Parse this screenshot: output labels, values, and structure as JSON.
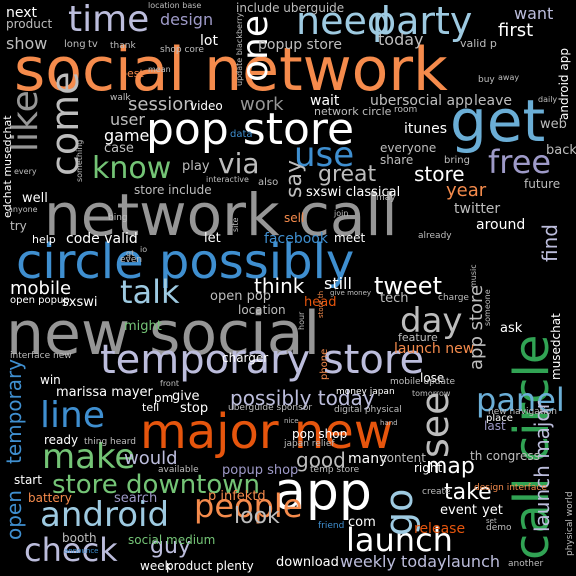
{
  "palette": {
    "background": "#000000",
    "orange": "#f58b4c",
    "dark_orange": "#e6550d",
    "blue": "#3f8fd0",
    "light_blue": "#9ecae1",
    "purple": "#9e9ac8",
    "lavender": "#bcbddc",
    "green": "#31a354",
    "light_green": "#74c476",
    "gray": "#969696",
    "light_gray": "#bdbdbd"
  },
  "words": [
    {
      "text": "social network",
      "color": "#f58b4c"
    },
    {
      "text": "network call",
      "color": "#969696"
    },
    {
      "text": "circle possibly",
      "color": "#3f8fd0"
    },
    {
      "text": "new social",
      "color": "#969696"
    },
    {
      "text": "pop store",
      "color": "#ffffff"
    },
    {
      "text": "call circle",
      "color": "#31a354"
    },
    {
      "text": "major new",
      "color": "#e6550d"
    },
    {
      "text": "temporary store",
      "color": "#bcbddc"
    },
    {
      "text": "get",
      "color": "#6baed6"
    },
    {
      "text": "app",
      "color": "#ffffff"
    },
    {
      "text": "launch",
      "color": "#ffffff"
    },
    {
      "text": "android",
      "color": "#9ecae1"
    },
    {
      "text": "check",
      "color": "#bcbddc"
    },
    {
      "text": "people",
      "color": "#f58b4c"
    },
    {
      "text": "time",
      "color": "#bcbddc"
    },
    {
      "text": "party",
      "color": "#9ecae1"
    },
    {
      "text": "need",
      "color": "#9ecae1"
    },
    {
      "text": "one",
      "color": "#ffffff"
    },
    {
      "text": "like",
      "color": "#969696"
    },
    {
      "text": "come",
      "color": "#bdbdbd"
    },
    {
      "text": "know",
      "color": "#74c476"
    },
    {
      "text": "use",
      "color": "#3f8fd0"
    },
    {
      "text": "free",
      "color": "#9e9ac8"
    },
    {
      "text": "via",
      "color": "#bdbdbd"
    },
    {
      "text": "talk",
      "color": "#9ecae1"
    },
    {
      "text": "day",
      "color": "#bdbdbd"
    },
    {
      "text": "line",
      "color": "#3f8fd0"
    },
    {
      "text": "make",
      "color": "#74c476"
    },
    {
      "text": "panel",
      "color": "#6baed6"
    },
    {
      "text": "see",
      "color": "#bdbdbd"
    },
    {
      "text": "go",
      "color": "#9ecae1"
    },
    {
      "text": "store downtown",
      "color": "#74c476"
    },
    {
      "text": "possibly today",
      "color": "#bcbddc"
    },
    {
      "text": "launch major",
      "color": "#bcbddc"
    },
    {
      "text": "tweet",
      "color": "#ffffff"
    },
    {
      "text": "think",
      "color": "#ffffff"
    },
    {
      "text": "mobile",
      "color": "#ffffff"
    },
    {
      "text": "would",
      "color": "#bcbddc"
    },
    {
      "text": "good",
      "color": "#bdbdbd"
    },
    {
      "text": "look",
      "color": "#bdbdbd"
    },
    {
      "text": "guy",
      "color": "#bcbddc"
    },
    {
      "text": "map",
      "color": "#ffffff"
    },
    {
      "text": "take",
      "color": "#ffffff"
    },
    {
      "text": "temporary",
      "color": "#3f8fd0"
    },
    {
      "text": "open",
      "color": "#3f8fd0"
    },
    {
      "text": "weekly todaylaunch",
      "color": "#bcbddc"
    },
    {
      "text": "store",
      "color": "#ffffff"
    },
    {
      "text": "year",
      "color": "#f58b4c"
    },
    {
      "text": "great",
      "color": "#bdbdbd"
    },
    {
      "text": "say",
      "color": "#bdbdbd"
    },
    {
      "text": "work",
      "color": "#969696"
    },
    {
      "text": "session",
      "color": "#bdbdbd"
    },
    {
      "text": "user",
      "color": "#bdbdbd"
    },
    {
      "text": "game",
      "color": "#ffffff"
    },
    {
      "text": "design",
      "color": "#9e9ac8"
    },
    {
      "text": "first",
      "color": "#ffffff"
    },
    {
      "text": "want",
      "color": "#bcbddc"
    },
    {
      "text": "today",
      "color": "#bdbdbd"
    },
    {
      "text": "show",
      "color": "#bdbdbd"
    },
    {
      "text": "find",
      "color": "#bcbddc"
    },
    {
      "text": "app store",
      "color": "#bdbdbd"
    },
    {
      "text": "ubersocial app",
      "color": "#bdbdbd"
    },
    {
      "text": "popup store",
      "color": "#bdbdbd"
    },
    {
      "text": "include uberguide",
      "color": "#bdbdbd"
    },
    {
      "text": "next",
      "color": "#ffffff"
    },
    {
      "text": "product",
      "color": "#bdbdbd"
    },
    {
      "text": "lot",
      "color": "#ffffff"
    },
    {
      "text": "wait",
      "color": "#ffffff"
    },
    {
      "text": "leave",
      "color": "#bdbdbd"
    },
    {
      "text": "sxswi classical",
      "color": "#ffffff"
    },
    {
      "text": "twitter",
      "color": "#bdbdbd"
    },
    {
      "text": "around",
      "color": "#ffffff"
    },
    {
      "text": "code valid",
      "color": "#ffffff"
    },
    {
      "text": "facebook",
      "color": "#3f8fd0"
    },
    {
      "text": "open pop",
      "color": "#bdbdbd"
    },
    {
      "text": "sxswi",
      "color": "#ffffff"
    },
    {
      "text": "location",
      "color": "#bdbdbd"
    },
    {
      "text": "still",
      "color": "#ffffff"
    },
    {
      "text": "tech",
      "color": "#bdbdbd"
    },
    {
      "text": "launch new",
      "color": "#f58b4c"
    },
    {
      "text": "marissa mayer",
      "color": "#ffffff"
    },
    {
      "text": "win",
      "color": "#ffffff"
    },
    {
      "text": "give",
      "color": "#ffffff"
    },
    {
      "text": "stop",
      "color": "#ffffff"
    },
    {
      "text": "pm",
      "color": "#ffffff"
    },
    {
      "text": "ready",
      "color": "#ffffff"
    },
    {
      "text": "pop shop",
      "color": "#ffffff"
    },
    {
      "text": "popup shop",
      "color": "#9e9ac8"
    },
    {
      "text": "many",
      "color": "#ffffff"
    },
    {
      "text": "content",
      "color": "#bdbdbd"
    },
    {
      "text": "right",
      "color": "#ffffff"
    },
    {
      "text": "th congress",
      "color": "#bdbdbd"
    },
    {
      "text": "search",
      "color": "#9e9ac8"
    },
    {
      "text": "p infektd",
      "color": "#f58b4c"
    },
    {
      "text": "event",
      "color": "#ffffff"
    },
    {
      "text": "yet",
      "color": "#ffffff"
    },
    {
      "text": "release",
      "color": "#e6550d"
    },
    {
      "text": "battery",
      "color": "#f58b4c"
    },
    {
      "text": "start",
      "color": "#ffffff"
    },
    {
      "text": "booth",
      "color": "#bdbdbd"
    },
    {
      "text": "social medium",
      "color": "#74c476"
    },
    {
      "text": "download",
      "color": "#ffffff"
    },
    {
      "text": "week",
      "color": "#ffffff"
    },
    {
      "text": "product plenty",
      "color": "#ffffff"
    },
    {
      "text": "com",
      "color": "#ffffff"
    },
    {
      "text": "head",
      "color": "#e6550d"
    },
    {
      "text": "charger",
      "color": "#ffffff"
    },
    {
      "text": "ask",
      "color": "#ffffff"
    },
    {
      "text": "itunes",
      "color": "#ffffff"
    },
    {
      "text": "share",
      "color": "#bdbdbd"
    },
    {
      "text": "everyone",
      "color": "#bdbdbd"
    },
    {
      "text": "play",
      "color": "#bdbdbd"
    },
    {
      "text": "case",
      "color": "#bdbdbd"
    },
    {
      "text": "video",
      "color": "#ffffff"
    },
    {
      "text": "store include",
      "color": "#bdbdbd"
    },
    {
      "text": "sell",
      "color": "#f58b4c"
    },
    {
      "text": "might",
      "color": "#74c476"
    },
    {
      "text": "let",
      "color": "#ffffff"
    },
    {
      "text": "meet",
      "color": "#ffffff"
    },
    {
      "text": "back",
      "color": "#bdbdbd"
    },
    {
      "text": "future",
      "color": "#bdbdbd"
    },
    {
      "text": "web",
      "color": "#bdbdbd"
    },
    {
      "text": "last",
      "color": "#9e9ac8"
    },
    {
      "text": "place",
      "color": "#ffffff"
    },
    {
      "text": "musedchat",
      "color": "#ffffff"
    },
    {
      "text": "android app",
      "color": "#ffffff"
    },
    {
      "text": "edchat musedchat",
      "color": "#ffffff"
    },
    {
      "text": "network circle",
      "color": "#bdbdbd"
    },
    {
      "text": "well",
      "color": "#ffffff"
    },
    {
      "text": "try",
      "color": "#bdbdbd"
    },
    {
      "text": "help",
      "color": "#ffffff"
    },
    {
      "text": "best",
      "color": "#f58b4c"
    },
    {
      "text": "long",
      "color": "#bdbdbd"
    },
    {
      "text": "tv",
      "color": "#bdbdbd"
    },
    {
      "text": "valid p",
      "color": "#bdbdbd"
    },
    {
      "text": "lose",
      "color": "#ffffff"
    },
    {
      "text": "tell",
      "color": "#ffffff"
    },
    {
      "text": "phone",
      "color": "#f58b4c"
    },
    {
      "text": "feature",
      "color": "#bdbdbd"
    },
    {
      "text": "bring",
      "color": "#bdbdbd"
    },
    {
      "text": "open popup",
      "color": "#ffffff"
    },
    {
      "text": "interface new",
      "color": "#bdbdbd"
    },
    {
      "text": "money japan",
      "color": "#ffffff"
    },
    {
      "text": "mobile update",
      "color": "#bdbdbd"
    },
    {
      "text": "digital physical",
      "color": "#bdbdbd"
    },
    {
      "text": "uberguide sponsor",
      "color": "#bdbdbd"
    },
    {
      "text": "temp store",
      "color": "#bdbdbd"
    },
    {
      "text": "japan relief",
      "color": "#bdbdbd"
    },
    {
      "text": "new navigation",
      "color": "#bdbdbd"
    },
    {
      "text": "physical world",
      "color": "#bdbdbd"
    },
    {
      "text": "design interface",
      "color": "#f58b4c"
    },
    {
      "text": "create",
      "color": "#bdbdbd"
    },
    {
      "text": "demo",
      "color": "#bdbdbd"
    },
    {
      "text": "friend",
      "color": "#3f8fd0"
    },
    {
      "text": "another",
      "color": "#bdbdbd"
    },
    {
      "text": "thing heard",
      "color": "#bdbdbd"
    },
    {
      "text": "available",
      "color": "#bdbdbd"
    },
    {
      "text": "shop core",
      "color": "#bdbdbd"
    },
    {
      "text": "thank",
      "color": "#bdbdbd"
    },
    {
      "text": "location base",
      "color": "#bdbdbd"
    },
    {
      "text": "update blackberry",
      "color": "#bdbdbd"
    },
    {
      "text": "buy",
      "color": "#bdbdbd"
    },
    {
      "text": "away",
      "color": "#bdbdbd"
    },
    {
      "text": "daily",
      "color": "#bdbdbd"
    },
    {
      "text": "walk",
      "color": "#bdbdbd"
    },
    {
      "text": "room",
      "color": "#bdbdbd"
    },
    {
      "text": "data",
      "color": "#3f8fd0"
    },
    {
      "text": "interactive",
      "color": "#bdbdbd"
    },
    {
      "text": "also",
      "color": "#bdbdbd"
    },
    {
      "text": "every",
      "color": "#bdbdbd"
    },
    {
      "text": "something",
      "color": "#bdbdbd"
    },
    {
      "text": "anyone",
      "color": "#bdbdbd"
    },
    {
      "text": "bing",
      "color": "#bdbdbd"
    },
    {
      "text": "join",
      "color": "#bdbdbd"
    },
    {
      "text": "may",
      "color": "#bdbdbd"
    },
    {
      "text": "already",
      "color": "#bdbdbd"
    },
    {
      "text": "site",
      "color": "#bdbdbd"
    },
    {
      "text": "io",
      "color": "#bdbdbd"
    },
    {
      "text": "gt",
      "color": "#bdbdbd"
    },
    {
      "text": "even",
      "color": "#bdbdbd"
    },
    {
      "text": "give money",
      "color": "#bdbdbd"
    },
    {
      "text": "store th",
      "color": "#f58b4c"
    },
    {
      "text": "someone",
      "color": "#bdbdbd"
    },
    {
      "text": "music",
      "color": "#bdbdbd"
    },
    {
      "text": "charge",
      "color": "#bdbdbd"
    },
    {
      "text": "hour",
      "color": "#bdbdbd"
    },
    {
      "text": "front",
      "color": "#bdbdbd"
    },
    {
      "text": "announce",
      "color": "#3f8fd0"
    },
    {
      "text": "set",
      "color": "#bdbdbd"
    },
    {
      "text": "mean",
      "color": "#bdbdbd"
    },
    {
      "text": "tomorrow",
      "color": "#bdbdbd"
    },
    {
      "text": "hand",
      "color": "#bdbdbd"
    },
    {
      "text": "nice",
      "color": "#bdbdbd"
    }
  ]
}
